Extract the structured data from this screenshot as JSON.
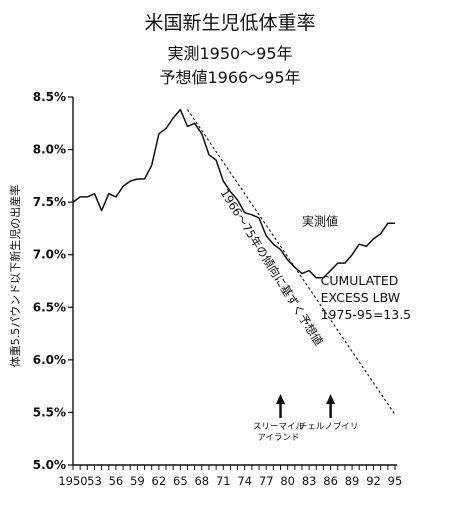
{
  "chart_data": {
    "type": "line",
    "title": "米国新生児低体重率",
    "subtitle_lines": [
      "実測1950～95年",
      "予想値1966～95年"
    ],
    "ylabel": "体重5.5パウンド以下新生児の出産率",
    "xlabel": "",
    "xlim": [
      1950,
      1995
    ],
    "ylim": [
      5.0,
      8.5
    ],
    "x_tick_labels": [
      "1950",
      "53",
      "56",
      "59",
      "62",
      "65",
      "68",
      "71",
      "74",
      "77",
      "80",
      "83",
      "86",
      "89",
      "92",
      "95"
    ],
    "y_tick_labels": [
      "5.0%",
      "5.5%",
      "6.0%",
      "6.5%",
      "7.0%",
      "7.5%",
      "8.0%",
      "8.5%"
    ],
    "series": [
      {
        "name": "実測値",
        "style": "solid",
        "x": [
          1950,
          1951,
          1952,
          1953,
          1954,
          1955,
          1956,
          1957,
          1958,
          1959,
          1960,
          1961,
          1962,
          1963,
          1964,
          1965,
          1966,
          1967,
          1968,
          1969,
          1970,
          1971,
          1972,
          1973,
          1974,
          1975,
          1976,
          1977,
          1978,
          1979,
          1980,
          1981,
          1982,
          1983,
          1984,
          1985,
          1986,
          1987,
          1988,
          1989,
          1990,
          1991,
          1992,
          1993,
          1994,
          1995
        ],
        "y": [
          7.5,
          7.55,
          7.55,
          7.58,
          7.42,
          7.58,
          7.55,
          7.65,
          7.7,
          7.72,
          7.72,
          7.85,
          8.15,
          8.2,
          8.3,
          8.38,
          8.22,
          8.25,
          8.15,
          7.95,
          7.9,
          7.7,
          7.6,
          7.52,
          7.4,
          7.38,
          7.35,
          7.18,
          7.1,
          7.05,
          6.95,
          6.88,
          6.82,
          6.85,
          6.78,
          6.78,
          6.85,
          6.92,
          6.92,
          7.0,
          7.1,
          7.08,
          7.15,
          7.2,
          7.3,
          7.3
        ]
      },
      {
        "name": "1966～75年の傾向に基ずく予想値",
        "style": "dashed",
        "x": [
          1966,
          1995
        ],
        "y": [
          8.38,
          5.48
        ]
      }
    ],
    "annotations": [
      {
        "id": "measured",
        "text": "実測値",
        "x": 1982,
        "y": 7.28
      },
      {
        "id": "excess",
        "lines": [
          "CUMULATED",
          "EXCESS LBW",
          "1975-95=13.5"
        ],
        "x": 1986,
        "y": 6.75
      },
      {
        "id": "tmi",
        "lines": [
          "スリーマイル",
          "アイランド"
        ],
        "arrow_year": 1979
      },
      {
        "id": "chernobyl",
        "lines": [
          "チェルノブイリ"
        ],
        "arrow_year": 1986
      }
    ],
    "grid": false,
    "legend": "none",
    "colors": {
      "line": "#111111",
      "background": "#ffffff"
    }
  }
}
